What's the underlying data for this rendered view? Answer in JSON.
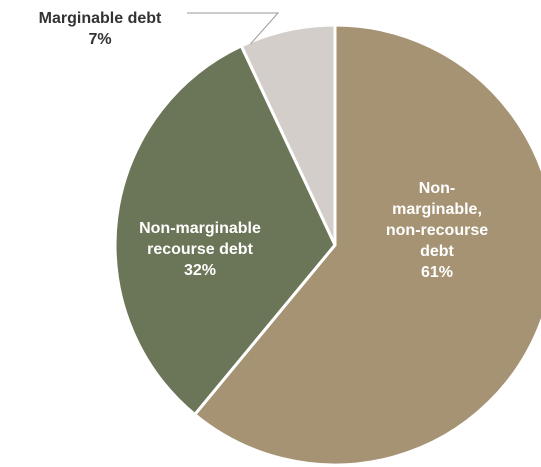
{
  "chart_data": {
    "type": "pie",
    "title": "",
    "legend": "none",
    "slices": [
      {
        "name": "Non-marginable, non-recourse debt",
        "value": 61,
        "label_lines": [
          "Non-",
          "marginable,",
          "non-recourse",
          "debt"
        ],
        "pct_label": "61%",
        "color": "#A59373",
        "label_color": "#ffffff"
      },
      {
        "name": "Non-marginable recourse debt",
        "value": 32,
        "label_lines": [
          "Non-marginable",
          "recourse debt"
        ],
        "pct_label": "32%",
        "color": "#6B7558",
        "label_color": "#ffffff"
      },
      {
        "name": "Marginable debt",
        "value": 7,
        "label_lines": [
          "Marginable debt"
        ],
        "pct_label": "7%",
        "color": "#D3CEC9",
        "label_color": "#333333"
      }
    ]
  }
}
